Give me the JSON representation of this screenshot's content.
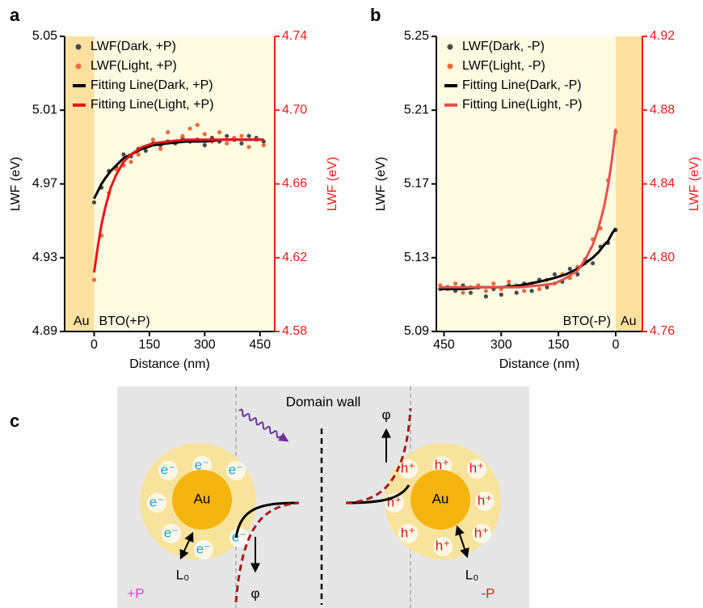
{
  "chart_data": [
    {
      "type": "scatter",
      "panel_label": "a",
      "xlabel": "Distance (nm)",
      "ylabel": "LWF (eV)",
      "y2label": "LWF (eV)",
      "y2_color": "#ee1c1c",
      "legend": "upper left",
      "xlim": [
        -80,
        490
      ],
      "xticks": [
        0,
        150,
        300,
        450
      ],
      "ylim": [
        4.89,
        5.05
      ],
      "yticks": [
        4.89,
        4.93,
        4.97,
        5.01,
        5.05
      ],
      "y2lim": [
        4.58,
        4.74
      ],
      "y2ticks": [
        4.58,
        4.62,
        4.66,
        {
          "value": 4.7,
          "label": "4.70"
        },
        4.74
      ],
      "regions": [
        {
          "label": "Au",
          "x": [
            -80,
            0
          ],
          "color": "#fbe0a0"
        },
        {
          "label": "BTO(+P)",
          "x": [
            0,
            490
          ],
          "color": "#fdfbe2"
        }
      ],
      "series": [
        {
          "name": "LWF(Dark, +P)",
          "mode": "markers",
          "color": "#4a4a4a",
          "x": [
            0,
            20,
            40,
            60,
            80,
            100,
            120,
            140,
            160,
            180,
            200,
            220,
            240,
            260,
            280,
            300,
            320,
            340,
            360,
            380,
            400,
            420,
            440,
            460
          ],
          "values": [
            4.96,
            4.968,
            4.977,
            4.979,
            4.986,
            4.985,
            4.989,
            4.988,
            4.992,
            4.991,
            4.993,
            4.992,
            4.995,
            4.993,
            4.994,
            4.991,
            4.995,
            4.993,
            4.996,
            4.994,
            4.992,
            4.996,
            4.995,
            4.993
          ]
        },
        {
          "name": "LWF(Light, +P)",
          "mode": "markers",
          "color": "#f26b3a",
          "axis": "y2",
          "x": [
            0,
            20,
            40,
            60,
            80,
            100,
            120,
            140,
            160,
            180,
            200,
            220,
            240,
            260,
            280,
            300,
            320,
            340,
            360,
            380,
            400,
            420,
            440,
            460
          ],
          "values": [
            4.608,
            4.632,
            4.655,
            4.668,
            4.67,
            4.672,
            4.676,
            4.68,
            4.684,
            4.679,
            4.688,
            4.683,
            4.686,
            4.69,
            4.692,
            4.687,
            4.683,
            4.688,
            4.682,
            4.685,
            4.686,
            4.68,
            4.684,
            4.681
          ]
        },
        {
          "name": "Fitting Line(Dark, +P)",
          "mode": "line",
          "color": "#000000",
          "x": [
            0,
            10,
            20,
            30,
            45,
            60,
            80,
            100,
            130,
            160,
            200,
            250,
            300,
            350,
            400,
            460
          ],
          "values": [
            4.962,
            4.966,
            4.97,
            4.973,
            4.977,
            4.98,
            4.984,
            4.986,
            4.989,
            4.991,
            4.992,
            4.993,
            4.993,
            4.994,
            4.994,
            4.994
          ]
        },
        {
          "name": "Fitting Line(Light, +P)",
          "mode": "line",
          "color": "#e8141c",
          "axis": "y2",
          "x": [
            0,
            10,
            20,
            30,
            45,
            60,
            80,
            100,
            130,
            160,
            200,
            250,
            300,
            350,
            400,
            460
          ],
          "values": [
            4.612,
            4.626,
            4.638,
            4.647,
            4.658,
            4.665,
            4.672,
            4.676,
            4.68,
            4.682,
            4.683,
            4.684,
            4.684,
            4.684,
            4.684,
            4.684
          ]
        }
      ]
    },
    {
      "type": "scatter",
      "panel_label": "b",
      "xlabel": "Distance (nm)",
      "ylabel": "LWF (eV)",
      "y2label": "LWF (eV)",
      "y2_color": "#ee1c1c",
      "legend": "upper left",
      "xlim": [
        470,
        -70
      ],
      "xticks": [
        450,
        300,
        150,
        0
      ],
      "ylim": [
        5.09,
        5.25
      ],
      "yticks": [
        5.09,
        5.13,
        5.17,
        5.21,
        5.25
      ],
      "y2lim": [
        4.76,
        4.92
      ],
      "y2ticks": [
        4.76,
        {
          "value": 4.8,
          "label": "4.80"
        },
        4.84,
        4.88,
        4.92
      ],
      "regions": [
        {
          "label": "BTO(-P)",
          "x": [
            470,
            0
          ],
          "color": "#fdfbe2"
        },
        {
          "label": "Au",
          "x": [
            0,
            -70
          ],
          "color": "#fbe0a0"
        }
      ],
      "series": [
        {
          "name": "LWF(Dark, -P)",
          "mode": "markers",
          "color": "#4a4a4a",
          "x": [
            0,
            20,
            40,
            60,
            80,
            100,
            120,
            140,
            160,
            180,
            200,
            220,
            240,
            260,
            280,
            300,
            320,
            340,
            360,
            380,
            400,
            420,
            440,
            460
          ],
          "values": [
            5.145,
            5.138,
            5.136,
            5.127,
            5.129,
            5.121,
            5.124,
            5.117,
            5.121,
            5.114,
            5.118,
            5.112,
            5.116,
            5.111,
            5.115,
            5.11,
            5.113,
            5.109,
            5.114,
            5.111,
            5.115,
            5.112,
            5.114,
            5.113
          ]
        },
        {
          "name": "LWF(Light, -P)",
          "mode": "markers",
          "color": "#f26b3a",
          "axis": "y2",
          "x": [
            0,
            20,
            40,
            60,
            80,
            100,
            120,
            140,
            160,
            180,
            200,
            220,
            240,
            260,
            280,
            300,
            320,
            340,
            360,
            380,
            400,
            420,
            440,
            460
          ],
          "values": [
            4.868,
            4.842,
            4.816,
            4.81,
            4.797,
            4.795,
            4.789,
            4.791,
            4.786,
            4.788,
            4.783,
            4.786,
            4.782,
            4.785,
            4.787,
            4.783,
            4.786,
            4.782,
            4.785,
            4.784,
            4.781,
            4.786,
            4.783,
            4.785
          ]
        },
        {
          "name": "Fitting Line(Dark, -P)",
          "mode": "line",
          "color": "#000000",
          "x": [
            0,
            10,
            20,
            30,
            45,
            60,
            80,
            100,
            130,
            160,
            200,
            250,
            300,
            350,
            400,
            460
          ],
          "values": [
            5.146,
            5.143,
            5.139,
            5.137,
            5.133,
            5.13,
            5.127,
            5.124,
            5.121,
            5.119,
            5.117,
            5.115,
            5.114,
            5.114,
            5.113,
            5.113
          ]
        },
        {
          "name": "Fitting Line(Light, -P)",
          "mode": "line",
          "color": "#e9504a",
          "axis": "y2",
          "x": [
            0,
            10,
            20,
            30,
            45,
            60,
            80,
            100,
            130,
            160,
            200,
            250,
            300,
            350,
            400,
            460
          ],
          "values": [
            4.87,
            4.853,
            4.839,
            4.828,
            4.816,
            4.807,
            4.799,
            4.793,
            4.789,
            4.786,
            4.785,
            4.784,
            4.784,
            4.784,
            4.784,
            4.784
          ]
        }
      ]
    }
  ],
  "diagram": {
    "panel_label": "c",
    "domain_wall": "Domain wall",
    "left": {
      "core": "Au",
      "charges": [
        "e⁻",
        "e⁻",
        "e⁻",
        "e⁻",
        "e⁻",
        "e⁻",
        "e⁻"
      ],
      "length": "L₀",
      "potential": "φ",
      "polarization": "+P"
    },
    "right": {
      "core": "Au",
      "charges": [
        "h⁺",
        "h⁺",
        "h⁺",
        "h⁺",
        "h⁺",
        "h⁺",
        "h⁺",
        "h⁺"
      ],
      "length": "L₀",
      "potential": "φ",
      "polarization": "-P"
    }
  }
}
